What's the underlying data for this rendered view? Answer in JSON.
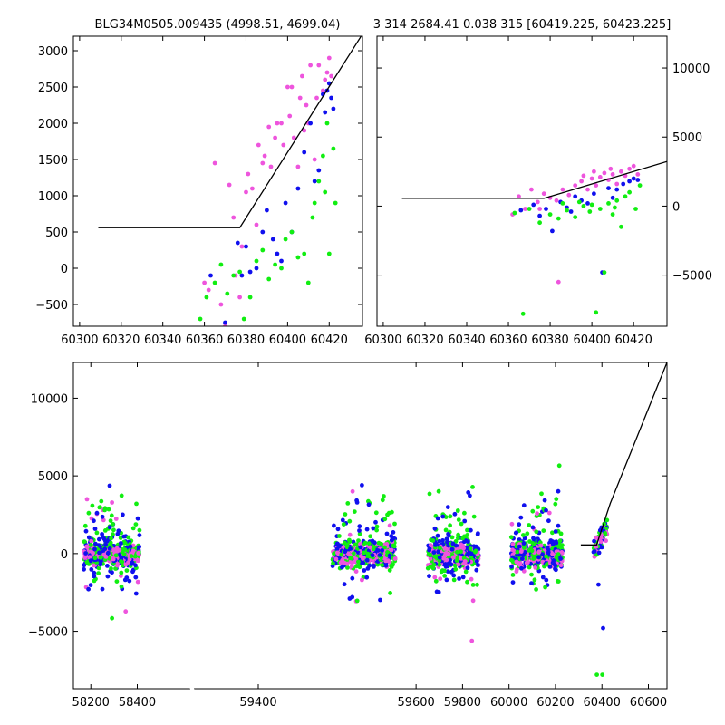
{
  "titles": {
    "left": "BLG34M0505.009435 (4998.51, 4699.04)",
    "right": "3 314 2684.41 0.038 315 [60419.225, 60423.225]"
  },
  "colors": {
    "series_1": "#1010ee",
    "series_2": "#11ee11",
    "series_3": "#ee55dd",
    "model": "#000000"
  },
  "chart_data": [
    {
      "type": "scatter",
      "title": "BLG34M0505.009435 (4998.51, 4699.04)",
      "xlim": [
        60297,
        60436
      ],
      "ylim": [
        -800,
        3200
      ],
      "xticks": [
        60300,
        60320,
        60340,
        60360,
        60380,
        60400,
        60420
      ],
      "yticks": [
        -500,
        0,
        500,
        1000,
        1500,
        2000,
        2500,
        3000
      ],
      "grid": false,
      "model_line": [
        [
          60309,
          560
        ],
        [
          60377,
          560
        ],
        [
          60436,
          3230
        ]
      ],
      "series": [
        {
          "color_key": "series_3",
          "points": [
            [
              60360,
              -200
            ],
            [
              60362,
              -300
            ],
            [
              60365,
              1450
            ],
            [
              60368,
              -500
            ],
            [
              60370,
              -800
            ],
            [
              60372,
              1150
            ],
            [
              60374,
              700
            ],
            [
              60375,
              -100
            ],
            [
              60377,
              -400
            ],
            [
              60378,
              300
            ],
            [
              60380,
              1050
            ],
            [
              60381,
              1300
            ],
            [
              60383,
              1100
            ],
            [
              60385,
              600
            ],
            [
              60386,
              1700
            ],
            [
              60388,
              1450
            ],
            [
              60389,
              1550
            ],
            [
              60391,
              1950
            ],
            [
              60392,
              1400
            ],
            [
              60394,
              1800
            ],
            [
              60395,
              2000
            ],
            [
              60397,
              2000
            ],
            [
              60398,
              1700
            ],
            [
              60400,
              2500
            ],
            [
              60401,
              2100
            ],
            [
              60402,
              2500
            ],
            [
              60403,
              1800
            ],
            [
              60405,
              1400
            ],
            [
              60406,
              2350
            ],
            [
              60407,
              2650
            ],
            [
              60408,
              1900
            ],
            [
              60409,
              2250
            ],
            [
              60410,
              2000
            ],
            [
              60411,
              2800
            ],
            [
              60413,
              1500
            ],
            [
              60414,
              2350
            ],
            [
              60415,
              2800
            ],
            [
              60417,
              2450
            ],
            [
              60418,
              2600
            ],
            [
              60419,
              2700
            ],
            [
              60420,
              2900
            ],
            [
              60421,
              2650
            ]
          ]
        },
        {
          "color_key": "series_1",
          "points": [
            [
              60363,
              -100
            ],
            [
              60370,
              -750
            ],
            [
              60376,
              350
            ],
            [
              60378,
              -100
            ],
            [
              60380,
              300
            ],
            [
              60382,
              -50
            ],
            [
              60385,
              0
            ],
            [
              60388,
              500
            ],
            [
              60390,
              800
            ],
            [
              60393,
              400
            ],
            [
              60395,
              200
            ],
            [
              60397,
              100
            ],
            [
              60399,
              900
            ],
            [
              60402,
              500
            ],
            [
              60405,
              1100
            ],
            [
              60408,
              1600
            ],
            [
              60411,
              2000
            ],
            [
              60413,
              1200
            ],
            [
              60415,
              1350
            ],
            [
              60417,
              2400
            ],
            [
              60418,
              2150
            ],
            [
              60419,
              2450
            ],
            [
              60420,
              2550
            ],
            [
              60421,
              2350
            ],
            [
              60422,
              2200
            ]
          ]
        },
        {
          "color_key": "series_2",
          "points": [
            [
              60358,
              -700
            ],
            [
              60361,
              -400
            ],
            [
              60365,
              -200
            ],
            [
              60368,
              50
            ],
            [
              60371,
              -350
            ],
            [
              60374,
              -100
            ],
            [
              60377,
              -50
            ],
            [
              60379,
              -700
            ],
            [
              60382,
              -400
            ],
            [
              60385,
              100
            ],
            [
              60388,
              250
            ],
            [
              60391,
              -150
            ],
            [
              60394,
              50
            ],
            [
              60397,
              0
            ],
            [
              60399,
              400
            ],
            [
              60402,
              500
            ],
            [
              60405,
              150
            ],
            [
              60408,
              200
            ],
            [
              60410,
              -200
            ],
            [
              60412,
              700
            ],
            [
              60413,
              900
            ],
            [
              60415,
              1200
            ],
            [
              60417,
              1550
            ],
            [
              60418,
              1050
            ],
            [
              60419,
              2000
            ],
            [
              60420,
              200
            ],
            [
              60422,
              1650
            ],
            [
              60423,
              900
            ]
          ]
        }
      ]
    },
    {
      "type": "scatter",
      "title": "3 314 2684.41 0.038 315 [60419.225, 60423.225]",
      "xlim": [
        60297,
        60436
      ],
      "ylim": [
        -8700,
        12300
      ],
      "xticks": [
        60300,
        60320,
        60340,
        60360,
        60380,
        60400,
        60420
      ],
      "yticks": [
        -5000,
        0,
        5000,
        10000
      ],
      "grid": false,
      "model_line": [
        [
          60309,
          560
        ],
        [
          60377,
          560
        ],
        [
          60436,
          3230
        ]
      ],
      "series": [
        {
          "color_key": "series_3",
          "points": [
            [
              60365,
              700
            ],
            [
              60368,
              -200
            ],
            [
              60371,
              1200
            ],
            [
              60374,
              300
            ],
            [
              60377,
              900
            ],
            [
              60380,
              600
            ],
            [
              60383,
              400
            ],
            [
              60386,
              1200
            ],
            [
              60389,
              800
            ],
            [
              60392,
              1500
            ],
            [
              60395,
              1800
            ],
            [
              60398,
              1200
            ],
            [
              60400,
              2000
            ],
            [
              60402,
              1500
            ],
            [
              60404,
              2100
            ],
            [
              60406,
              2400
            ],
            [
              60408,
              1900
            ],
            [
              60410,
              2300
            ],
            [
              60412,
              1600
            ],
            [
              60414,
              2500
            ],
            [
              60416,
              2200
            ],
            [
              60418,
              2700
            ],
            [
              60420,
              2900
            ],
            [
              60422,
              2300
            ],
            [
              60384,
              -5500
            ],
            [
              60362,
              -600
            ],
            [
              60375,
              -200
            ],
            [
              60396,
              2200
            ],
            [
              60401,
              2500
            ],
            [
              60409,
              2700
            ]
          ]
        },
        {
          "color_key": "series_1",
          "points": [
            [
              60366,
              -300
            ],
            [
              60372,
              100
            ],
            [
              60378,
              -200
            ],
            [
              60381,
              -1800
            ],
            [
              60385,
              300
            ],
            [
              60388,
              -100
            ],
            [
              60392,
              700
            ],
            [
              60395,
              400
            ],
            [
              60398,
              200
            ],
            [
              60401,
              900
            ],
            [
              60405,
              -4800
            ],
            [
              60408,
              1300
            ],
            [
              60412,
              1200
            ],
            [
              60415,
              1600
            ],
            [
              60418,
              1800
            ],
            [
              60420,
              2000
            ],
            [
              60422,
              1900
            ],
            [
              60375,
              -700
            ],
            [
              60390,
              -400
            ],
            [
              60410,
              600
            ]
          ]
        },
        {
          "color_key": "series_2",
          "points": [
            [
              60363,
              -500
            ],
            [
              60367,
              -7800
            ],
            [
              60370,
              -200
            ],
            [
              60375,
              -1200
            ],
            [
              60380,
              -600
            ],
            [
              60384,
              -900
            ],
            [
              60388,
              -300
            ],
            [
              60392,
              -800
            ],
            [
              60396,
              0
            ],
            [
              60399,
              -400
            ],
            [
              60402,
              -7700
            ],
            [
              60404,
              -200
            ],
            [
              60406,
              -4800
            ],
            [
              60408,
              200
            ],
            [
              60410,
              -600
            ],
            [
              60412,
              400
            ],
            [
              60414,
              -1500
            ],
            [
              60416,
              700
            ],
            [
              60418,
              1000
            ],
            [
              60421,
              -200
            ],
            [
              60423,
              1500
            ],
            [
              60386,
              200
            ],
            [
              60394,
              300
            ],
            [
              60400,
              100
            ],
            [
              60411,
              -100
            ]
          ]
        }
      ]
    },
    {
      "type": "scatter",
      "title": "",
      "xlim": [
        58125,
        60680
      ],
      "ylim": [
        -8700,
        12300
      ],
      "xticks": [
        58200,
        58400,
        59400,
        59600,
        59800,
        60000,
        60200,
        60400,
        60600
      ],
      "yticks": [
        -5000,
        0,
        5000,
        10000
      ],
      "grid": false,
      "model_line": [
        [
          60309,
          560
        ],
        [
          60377,
          560
        ],
        [
          60436,
          3230
        ],
        [
          60680,
          12300
        ]
      ]
    }
  ]
}
